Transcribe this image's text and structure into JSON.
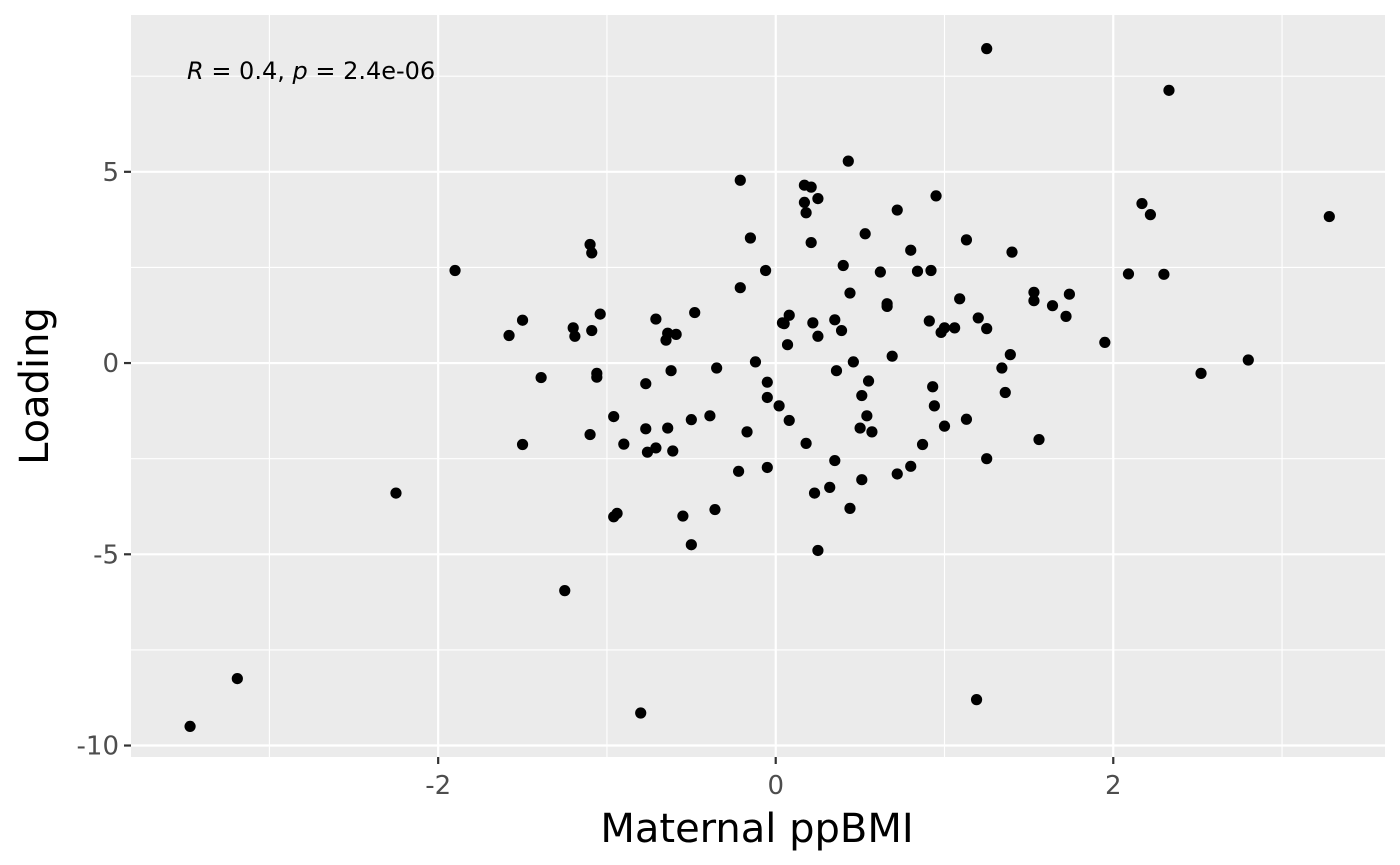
{
  "chart_data": {
    "type": "scatter",
    "xlabel": "Maternal ppBMI",
    "ylabel": "Loading",
    "xlim": [
      -3.82,
      3.61
    ],
    "ylim": [
      -10.3,
      9.1
    ],
    "x_ticks": [
      -2,
      0,
      2
    ],
    "x_tick_labels": [
      "-2",
      "0",
      "2"
    ],
    "x_minor_ticks": [
      -3,
      -1,
      1,
      3
    ],
    "y_ticks": [
      5,
      0,
      -5,
      -10
    ],
    "y_tick_labels": [
      "5",
      "0",
      "-5",
      "-10"
    ],
    "y_minor_ticks": [
      7.5,
      2.5,
      -2.5,
      -7.5
    ],
    "annotation": {
      "r_label": "R",
      "r_text": " = 0.4, ",
      "p_label": "p",
      "p_text": " = 2.4e-06"
    },
    "grid": true,
    "legend": "none",
    "colors": {
      "panel": "#ebebeb",
      "grid": "#ffffff",
      "point": "#000000"
    },
    "points": [
      [
        -3.47,
        -9.5
      ],
      [
        -3.19,
        -8.25
      ],
      [
        -2.25,
        -3.4
      ],
      [
        -1.9,
        2.42
      ],
      [
        -1.58,
        0.72
      ],
      [
        -1.5,
        1.12
      ],
      [
        -1.5,
        -2.13
      ],
      [
        -1.39,
        -0.38
      ],
      [
        -1.2,
        0.92
      ],
      [
        -1.19,
        0.7
      ],
      [
        -1.25,
        -5.95
      ],
      [
        -1.1,
        3.1
      ],
      [
        -1.09,
        2.88
      ],
      [
        -1.09,
        0.85
      ],
      [
        -1.1,
        -1.87
      ],
      [
        -1.06,
        -0.27
      ],
      [
        -1.06,
        -0.37
      ],
      [
        -1.04,
        1.28
      ],
      [
        -0.96,
        -1.4
      ],
      [
        -0.96,
        -4.02
      ],
      [
        -0.94,
        -3.93
      ],
      [
        -0.9,
        -2.12
      ],
      [
        -0.8,
        -9.15
      ],
      [
        -0.77,
        -0.54
      ],
      [
        -0.77,
        -1.72
      ],
      [
        -0.76,
        -2.33
      ],
      [
        -0.71,
        1.15
      ],
      [
        -0.71,
        -2.22
      ],
      [
        -0.65,
        0.6
      ],
      [
        -0.64,
        0.78
      ],
      [
        -0.64,
        -1.7
      ],
      [
        -0.62,
        -0.2
      ],
      [
        -0.61,
        -2.3
      ],
      [
        -0.59,
        0.75
      ],
      [
        -0.55,
        -4.0
      ],
      [
        -0.5,
        -1.48
      ],
      [
        -0.5,
        -4.75
      ],
      [
        -0.48,
        1.32
      ],
      [
        -0.39,
        -1.38
      ],
      [
        -0.36,
        -3.83
      ],
      [
        -0.35,
        -0.13
      ],
      [
        -0.21,
        4.78
      ],
      [
        -0.21,
        1.97
      ],
      [
        -0.22,
        -2.83
      ],
      [
        -0.17,
        -1.8
      ],
      [
        -0.15,
        3.27
      ],
      [
        -0.12,
        0.03
      ],
      [
        -0.06,
        2.42
      ],
      [
        -0.05,
        -0.5
      ],
      [
        -0.05,
        -0.9
      ],
      [
        -0.05,
        -2.73
      ],
      [
        0.02,
        -1.12
      ],
      [
        0.04,
        1.05
      ],
      [
        0.05,
        1.03
      ],
      [
        0.07,
        0.48
      ],
      [
        0.08,
        1.25
      ],
      [
        0.08,
        -1.5
      ],
      [
        0.17,
        4.2
      ],
      [
        0.17,
        4.65
      ],
      [
        0.18,
        3.93
      ],
      [
        0.18,
        -2.1
      ],
      [
        0.21,
        4.6
      ],
      [
        0.21,
        3.15
      ],
      [
        0.22,
        1.05
      ],
      [
        0.23,
        -3.4
      ],
      [
        0.25,
        4.3
      ],
      [
        0.25,
        0.7
      ],
      [
        0.25,
        -4.9
      ],
      [
        0.32,
        -3.25
      ],
      [
        0.35,
        1.13
      ],
      [
        0.35,
        -2.55
      ],
      [
        0.36,
        -0.2
      ],
      [
        0.39,
        0.85
      ],
      [
        0.4,
        2.55
      ],
      [
        0.43,
        5.28
      ],
      [
        0.44,
        1.83
      ],
      [
        0.44,
        -3.8
      ],
      [
        0.46,
        0.03
      ],
      [
        0.5,
        -1.7
      ],
      [
        0.51,
        -0.85
      ],
      [
        0.51,
        -3.05
      ],
      [
        0.53,
        3.38
      ],
      [
        0.54,
        -1.38
      ],
      [
        0.55,
        -0.47
      ],
      [
        0.57,
        -1.8
      ],
      [
        0.62,
        2.38
      ],
      [
        0.66,
        1.55
      ],
      [
        0.66,
        1.48
      ],
      [
        0.69,
        0.18
      ],
      [
        0.72,
        4.0
      ],
      [
        0.72,
        -2.9
      ],
      [
        0.8,
        2.95
      ],
      [
        0.8,
        -2.7
      ],
      [
        0.84,
        2.4
      ],
      [
        0.87,
        -2.13
      ],
      [
        0.91,
        1.1
      ],
      [
        0.92,
        2.42
      ],
      [
        0.93,
        -0.62
      ],
      [
        0.94,
        -1.12
      ],
      [
        0.95,
        4.37
      ],
      [
        0.98,
        0.8
      ],
      [
        1.0,
        0.92
      ],
      [
        1.0,
        -1.65
      ],
      [
        1.06,
        0.92
      ],
      [
        1.09,
        1.68
      ],
      [
        1.13,
        3.22
      ],
      [
        1.13,
        -1.47
      ],
      [
        1.19,
        -8.8
      ],
      [
        1.2,
        1.18
      ],
      [
        1.25,
        8.22
      ],
      [
        1.25,
        0.9
      ],
      [
        1.25,
        -2.5
      ],
      [
        1.34,
        -0.13
      ],
      [
        1.36,
        -0.77
      ],
      [
        1.39,
        0.22
      ],
      [
        1.4,
        2.9
      ],
      [
        1.53,
        1.85
      ],
      [
        1.53,
        1.63
      ],
      [
        1.56,
        -2.0
      ],
      [
        1.64,
        1.5
      ],
      [
        1.72,
        1.22
      ],
      [
        1.74,
        1.8
      ],
      [
        1.95,
        0.54
      ],
      [
        2.09,
        2.33
      ],
      [
        2.17,
        4.17
      ],
      [
        2.22,
        3.88
      ],
      [
        2.3,
        2.32
      ],
      [
        2.33,
        7.13
      ],
      [
        2.52,
        -0.27
      ],
      [
        2.8,
        0.08
      ],
      [
        3.28,
        3.83
      ]
    ]
  }
}
